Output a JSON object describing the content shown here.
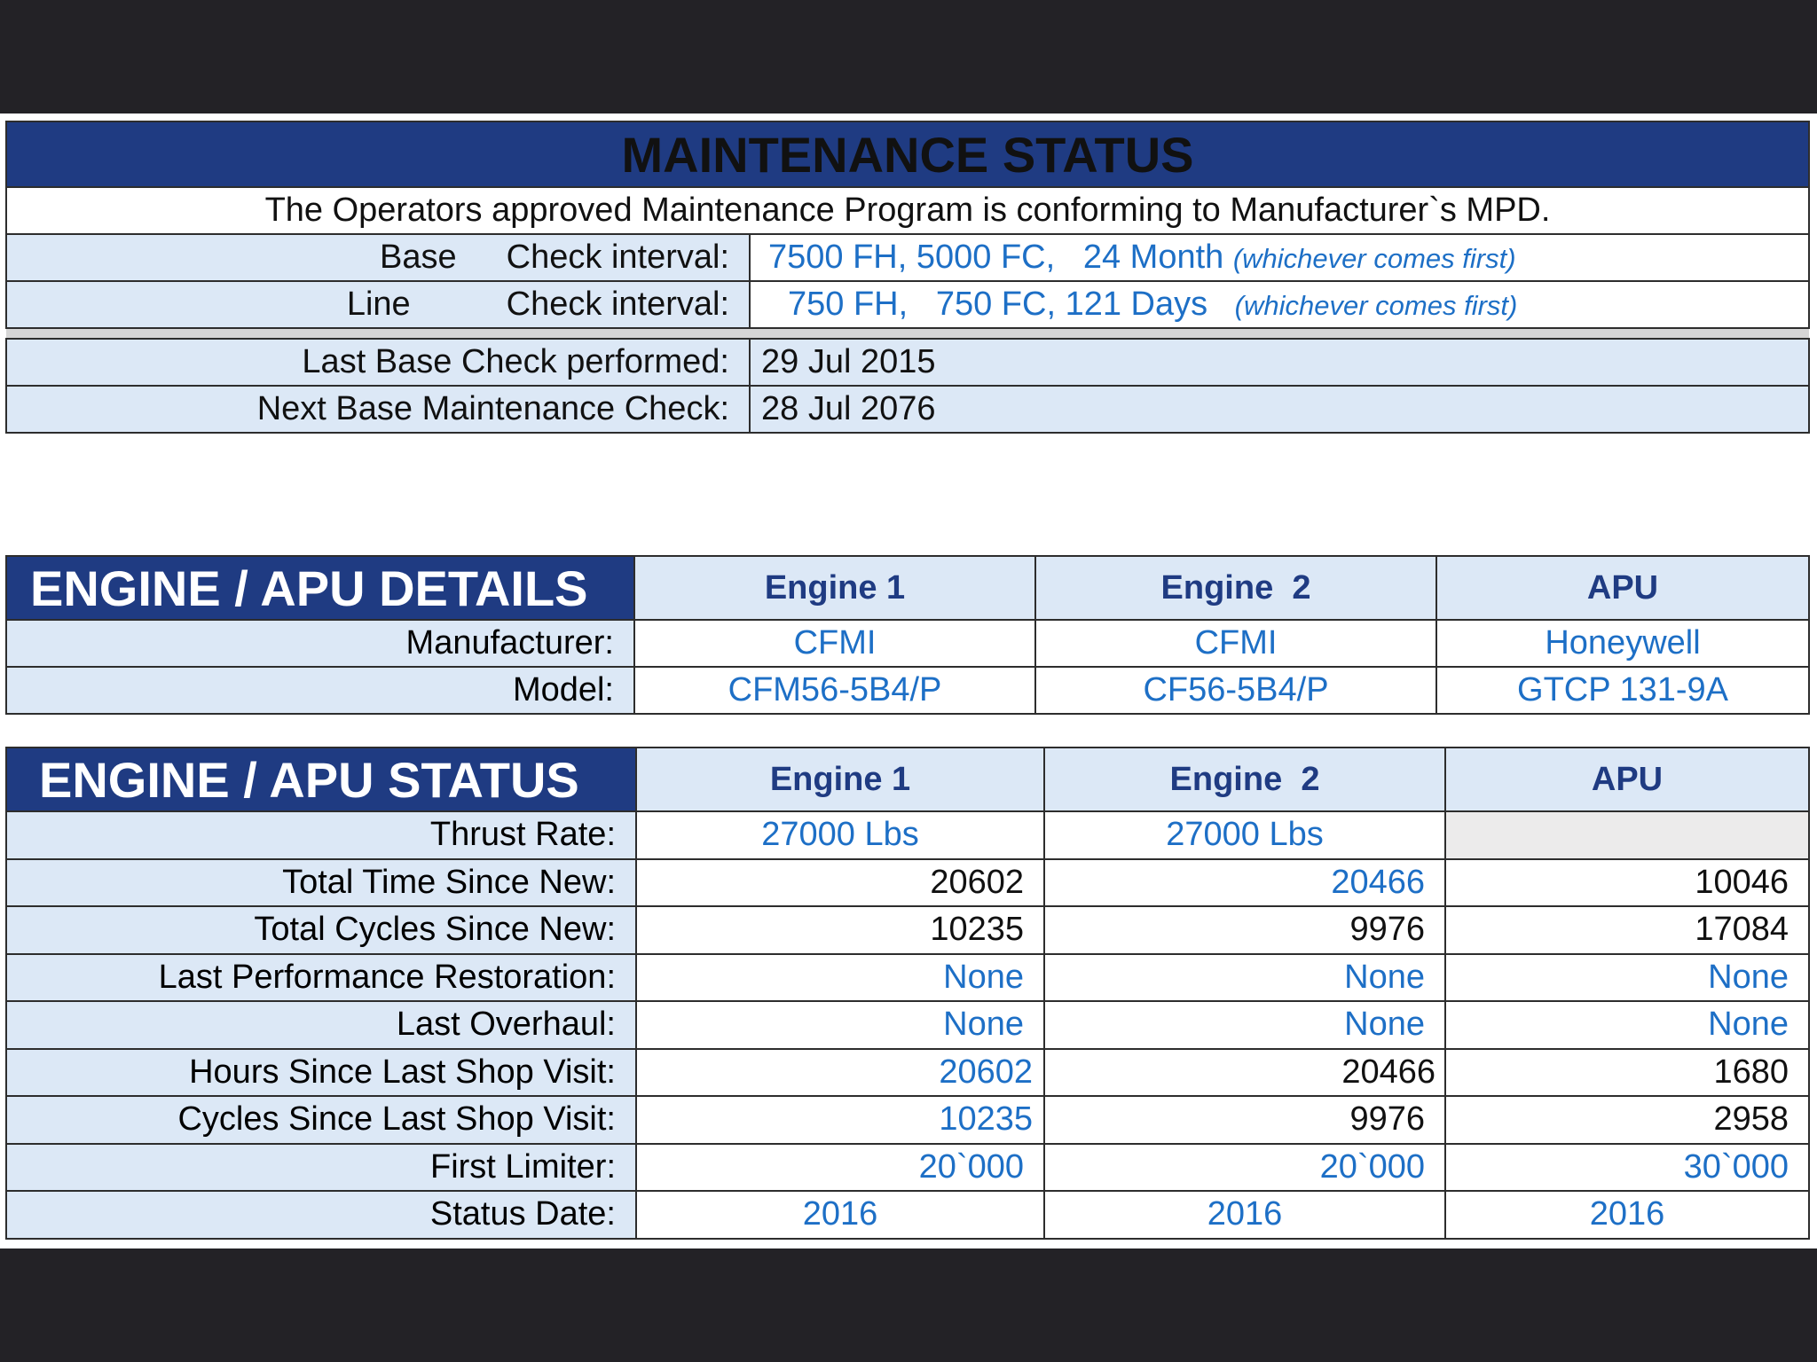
{
  "maintenance": {
    "title": "MAINTENANCE STATUS",
    "note": "The Operators approved Maintenance Program is conforming to Manufacturer`s MPD.",
    "base": {
      "kind": "Base",
      "label": "Check interval:",
      "value": "7500 FH, 5000 FC,   24 Month",
      "qualifier": "(whichever comes first)"
    },
    "line": {
      "kind": "Line",
      "label": "Check interval:",
      "value": "750 FH,   750 FC, 121 Days",
      "qualifier": "(whichever comes first)"
    },
    "last_base": {
      "label": "Last Base Check performed:",
      "value": "29 Jul 2015"
    },
    "next_base": {
      "label": "Next Base Maintenance Check:",
      "value": "28 Jul 2076"
    }
  },
  "details": {
    "title": "ENGINE / APU DETAILS",
    "columns": [
      "Engine 1",
      "Engine  2",
      "APU"
    ],
    "manufacturer": {
      "label": "Manufacturer:",
      "values": [
        "CFMI",
        "CFMI",
        "Honeywell"
      ]
    },
    "model": {
      "label": "Model:",
      "values": [
        "CFM56-5B4/P",
        "CF56-5B4/P",
        "GTCP 131-9A"
      ]
    }
  },
  "status": {
    "title": "ENGINE / APU STATUS",
    "columns": [
      "Engine 1",
      "Engine  2",
      "APU"
    ],
    "rows": [
      {
        "label": "Thrust Rate:",
        "values": [
          "27000 Lbs",
          "27000 Lbs",
          ""
        ]
      },
      {
        "label": "Total Time Since New:",
        "values": [
          "20602",
          "20466",
          "10046"
        ]
      },
      {
        "label": "Total Cycles Since New:",
        "values": [
          "10235",
          "9976",
          "17084"
        ]
      },
      {
        "label": "Last Performance Restoration:",
        "values": [
          "None",
          "None",
          "None"
        ]
      },
      {
        "label": "Last Overhaul:",
        "values": [
          "None",
          "None",
          "None"
        ]
      },
      {
        "label": "Hours Since Last Shop Visit:",
        "values": [
          "20602",
          "20466",
          "1680"
        ]
      },
      {
        "label": "Cycles Since Last Shop Visit:",
        "values": [
          "10235",
          "9976",
          "2958"
        ]
      },
      {
        "label": "First Limiter:",
        "values": [
          "20`000",
          "20`000",
          "30`000"
        ]
      },
      {
        "label": "Status Date:",
        "values": [
          "2016",
          "2016",
          "2016"
        ]
      }
    ]
  },
  "colors": {
    "navy": "#1f3b82",
    "value_blue": "#1d6fc6",
    "light_blue": "#dce8f6"
  }
}
